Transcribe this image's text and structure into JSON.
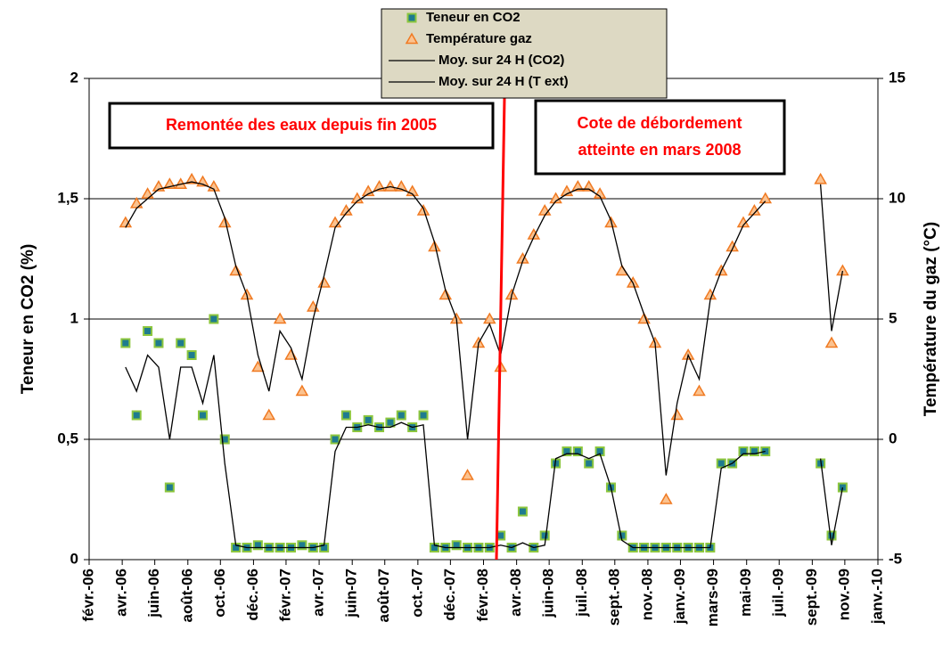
{
  "chart_data": {
    "type": "scatter",
    "y_label": "Teneur en CO2 (%)",
    "y2_label": "Température du gaz (°C)",
    "annotations": [
      {
        "lines": [
          "Remontée des eaux depuis fin 2005"
        ]
      },
      {
        "lines": [
          "Cote de débordement",
          "atteinte en mars 2008"
        ]
      }
    ],
    "xlim": [
      38749,
      40179
    ],
    "xticks": [
      {
        "value": 38749,
        "label": "févr.-06"
      },
      {
        "value": 38809,
        "label": "avr.-06"
      },
      {
        "value": 38868,
        "label": "juin-06"
      },
      {
        "value": 38928,
        "label": "août-06"
      },
      {
        "value": 38987,
        "label": "oct.-06"
      },
      {
        "value": 39047,
        "label": "déc.-06"
      },
      {
        "value": 39106,
        "label": "févr.-07"
      },
      {
        "value": 39166,
        "label": "avr.-07"
      },
      {
        "value": 39226,
        "label": "juin-07"
      },
      {
        "value": 39285,
        "label": "août-07"
      },
      {
        "value": 39345,
        "label": "oct.-07"
      },
      {
        "value": 39404,
        "label": "déc.-07"
      },
      {
        "value": 39464,
        "label": "févr.-08"
      },
      {
        "value": 39524,
        "label": "avr.-08"
      },
      {
        "value": 39583,
        "label": "juin-08"
      },
      {
        "value": 39643,
        "label": "juil.-08"
      },
      {
        "value": 39702,
        "label": "sept.-08"
      },
      {
        "value": 39762,
        "label": "nov.-08"
      },
      {
        "value": 39821,
        "label": "janv.-09"
      },
      {
        "value": 39881,
        "label": "mars-09"
      },
      {
        "value": 39941,
        "label": "mai-09"
      },
      {
        "value": 40000,
        "label": "juil.-09"
      },
      {
        "value": 40060,
        "label": "sept.-09"
      },
      {
        "value": 40119,
        "label": "nov.-09"
      },
      {
        "value": 40179,
        "label": "janv.-10"
      }
    ],
    "ylim": [
      0,
      2
    ],
    "yticks": [
      0,
      {
        "value": 0.5,
        "label": "0,5"
      },
      1,
      {
        "value": 1.5,
        "label": "1,5"
      },
      2
    ],
    "y2lim": [
      -5,
      15
    ],
    "y2ticks": [
      -5,
      0,
      5,
      10,
      15
    ],
    "grid": true,
    "x": [
      38815,
      38835,
      38855,
      38875,
      38895,
      38915,
      38935,
      38955,
      38975,
      38995,
      39015,
      39035,
      39055,
      39075,
      39095,
      39115,
      39135,
      39155,
      39175,
      39195,
      39215,
      39235,
      39255,
      39275,
      39295,
      39315,
      39335,
      39355,
      39375,
      39395,
      39415,
      39435,
      39455,
      39475,
      39495,
      39515,
      39535,
      39555,
      39575,
      39595,
      39615,
      39635,
      39655,
      39675,
      39695,
      39715,
      39735,
      39755,
      39775,
      39795,
      39815,
      39835,
      39855,
      39875,
      39895,
      39915,
      39935,
      39955,
      39975,
      39995,
      40015,
      40035,
      40055,
      40075,
      40095,
      40115,
      40135
    ],
    "series": [
      {
        "name": "Teneur en CO2",
        "mode": "markers",
        "marker": "square",
        "color": "#1e7b8f",
        "edge": "#8cc63e",
        "values": [
          0.9,
          0.6,
          0.95,
          0.9,
          0.3,
          0.9,
          0.85,
          0.6,
          1.0,
          0.5,
          0.05,
          0.05,
          0.06,
          0.05,
          0.05,
          0.05,
          0.06,
          0.05,
          0.05,
          0.5,
          0.6,
          0.55,
          0.58,
          0.55,
          0.57,
          0.6,
          0.55,
          0.6,
          0.05,
          0.05,
          0.06,
          0.05,
          0.05,
          0.05,
          0.1,
          0.05,
          0.2,
          0.05,
          0.1,
          0.4,
          0.45,
          0.45,
          0.4,
          0.45,
          0.3,
          0.1,
          0.05,
          0.05,
          0.05,
          0.05,
          0.05,
          0.05,
          0.05,
          0.05,
          0.4,
          0.4,
          0.45,
          0.45,
          0.45,
          null,
          null,
          null,
          null,
          0.4,
          0.1,
          0.3,
          null
        ]
      },
      {
        "name": "Température gaz",
        "mode": "markers",
        "marker": "triangle",
        "axis": "y2",
        "color": "#fbc28f",
        "edge": "#f07a22",
        "values": [
          9,
          9.8,
          10.2,
          10.5,
          10.6,
          10.6,
          10.8,
          10.7,
          10.5,
          9,
          7,
          6,
          3,
          1,
          5,
          3.5,
          2,
          5.5,
          6.5,
          9,
          9.5,
          10,
          10.3,
          10.5,
          10.5,
          10.5,
          10.3,
          9.5,
          8,
          6,
          5,
          -1.5,
          4,
          5,
          3,
          6,
          7.5,
          8.5,
          9.5,
          10,
          10.3,
          10.5,
          10.5,
          10.2,
          9,
          7,
          6.5,
          5,
          4,
          -2.5,
          1,
          3.5,
          2,
          6,
          7,
          8,
          9,
          9.5,
          10,
          null,
          null,
          null,
          null,
          10.8,
          4,
          7,
          null
        ]
      },
      {
        "name": "Moy. sur 24 H (CO2)",
        "mode": "lines",
        "color": "#000000",
        "values": [
          0.8,
          0.7,
          0.85,
          0.8,
          0.5,
          0.8,
          0.8,
          0.65,
          0.85,
          0.4,
          0.06,
          0.05,
          0.05,
          0.05,
          0.05,
          0.05,
          0.05,
          0.05,
          0.06,
          0.45,
          0.55,
          0.55,
          0.56,
          0.55,
          0.55,
          0.57,
          0.55,
          0.56,
          0.06,
          0.05,
          0.05,
          0.05,
          0.05,
          0.05,
          0.06,
          0.05,
          0.07,
          0.05,
          0.06,
          0.42,
          0.44,
          0.44,
          0.42,
          0.44,
          0.3,
          0.08,
          0.05,
          0.05,
          0.05,
          0.05,
          0.05,
          0.05,
          0.05,
          0.05,
          0.38,
          0.4,
          0.44,
          0.44,
          0.45,
          null,
          null,
          null,
          null,
          0.42,
          0.06,
          0.3,
          null
        ]
      },
      {
        "name": "Moy. sur 24 H (T ext)",
        "mode": "lines",
        "axis": "y2",
        "color": "#000000",
        "values": [
          8.8,
          9.6,
          10,
          10.4,
          10.5,
          10.6,
          10.7,
          10.6,
          10.4,
          9.2,
          7.2,
          6,
          3.5,
          2,
          4.5,
          3.8,
          2.5,
          5,
          6.8,
          8.8,
          9.4,
          9.9,
          10.2,
          10.4,
          10.5,
          10.4,
          10.2,
          9.6,
          8.2,
          6.2,
          5,
          0,
          4,
          4.8,
          3.5,
          6,
          7.4,
          8.4,
          9.3,
          9.9,
          10.2,
          10.4,
          10.4,
          10.1,
          9.1,
          7.2,
          6.5,
          5.2,
          4,
          -1.5,
          1.5,
          3.5,
          2.5,
          5.8,
          7,
          7.9,
          8.9,
          9.4,
          9.9,
          null,
          null,
          null,
          null,
          10.6,
          4.5,
          7,
          null
        ]
      }
    ]
  }
}
